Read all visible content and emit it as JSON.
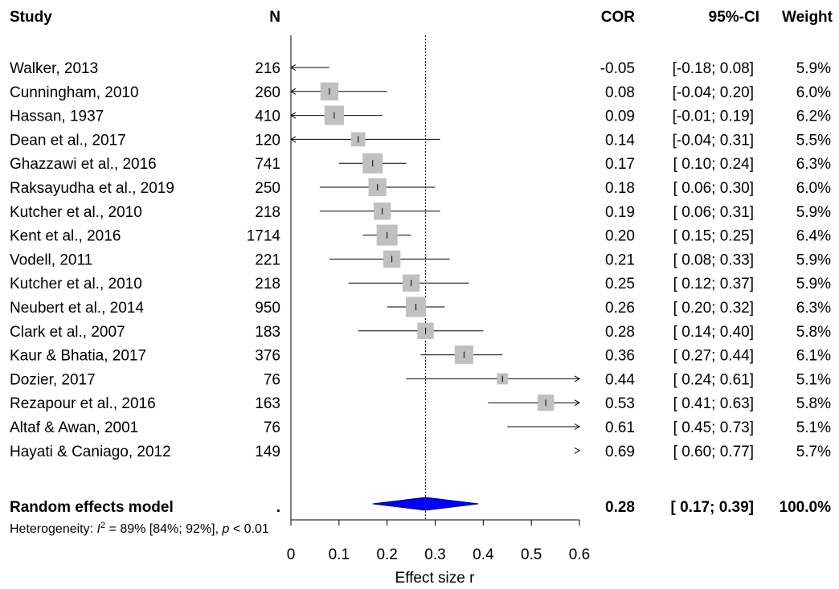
{
  "chart_data": {
    "type": "forest",
    "headers": {
      "study": "Study",
      "n": "N",
      "cor": "COR",
      "ci": "95%-CI",
      "weight": "Weight"
    },
    "studies": [
      {
        "study": "Walker, 2013",
        "n": "216",
        "cor": "-0.05",
        "ci": "[-0.18; 0.08]",
        "weight": "5.9%",
        "est": -0.05,
        "lo": -0.18,
        "hi": 0.08,
        "w": 5.9
      },
      {
        "study": "Cunningham, 2010",
        "n": "260",
        "cor": "0.08",
        "ci": "[-0.04; 0.20]",
        "weight": "6.0%",
        "est": 0.08,
        "lo": -0.04,
        "hi": 0.2,
        "w": 6.0
      },
      {
        "study": "Hassan, 1937",
        "n": "410",
        "cor": "0.09",
        "ci": "[-0.01; 0.19]",
        "weight": "6.2%",
        "est": 0.09,
        "lo": -0.01,
        "hi": 0.19,
        "w": 6.2
      },
      {
        "study": "Dean et al., 2017",
        "n": "120",
        "cor": "0.14",
        "ci": "[-0.04; 0.31]",
        "weight": "5.5%",
        "est": 0.14,
        "lo": -0.04,
        "hi": 0.31,
        "w": 5.5
      },
      {
        "study": "Ghazzawi et al., 2016",
        "n": "741",
        "cor": "0.17",
        "ci": "[ 0.10; 0.24]",
        "weight": "6.3%",
        "est": 0.17,
        "lo": 0.1,
        "hi": 0.24,
        "w": 6.3
      },
      {
        "study": "Raksayudha et al., 2019",
        "n": "250",
        "cor": "0.18",
        "ci": "[ 0.06; 0.30]",
        "weight": "6.0%",
        "est": 0.18,
        "lo": 0.06,
        "hi": 0.3,
        "w": 6.0
      },
      {
        "study": "Kutcher et al., 2010",
        "n": "218",
        "cor": "0.19",
        "ci": "[ 0.06; 0.31]",
        "weight": "5.9%",
        "est": 0.19,
        "lo": 0.06,
        "hi": 0.31,
        "w": 5.9
      },
      {
        "study": "Kent et al., 2016",
        "n": "1714",
        "cor": "0.20",
        "ci": "[ 0.15; 0.25]",
        "weight": "6.4%",
        "est": 0.2,
        "lo": 0.15,
        "hi": 0.25,
        "w": 6.4
      },
      {
        "study": "Vodell, 2011",
        "n": "221",
        "cor": "0.21",
        "ci": "[ 0.08; 0.33]",
        "weight": "5.9%",
        "est": 0.21,
        "lo": 0.08,
        "hi": 0.33,
        "w": 5.9
      },
      {
        "study": "Kutcher et al., 2010",
        "n": "218",
        "cor": "0.25",
        "ci": "[ 0.12; 0.37]",
        "weight": "5.9%",
        "est": 0.25,
        "lo": 0.12,
        "hi": 0.37,
        "w": 5.9
      },
      {
        "study": "Neubert et al., 2014",
        "n": "950",
        "cor": "0.26",
        "ci": "[ 0.20; 0.32]",
        "weight": "6.3%",
        "est": 0.26,
        "lo": 0.2,
        "hi": 0.32,
        "w": 6.3
      },
      {
        "study": "Clark et al., 2007",
        "n": "183",
        "cor": "0.28",
        "ci": "[ 0.14; 0.40]",
        "weight": "5.8%",
        "est": 0.28,
        "lo": 0.14,
        "hi": 0.4,
        "w": 5.8
      },
      {
        "study": "Kaur & Bhatia, 2017",
        "n": "376",
        "cor": "0.36",
        "ci": "[ 0.27; 0.44]",
        "weight": "6.1%",
        "est": 0.36,
        "lo": 0.27,
        "hi": 0.44,
        "w": 6.1
      },
      {
        "study": "Dozier, 2017",
        "n": "76",
        "cor": "0.44",
        "ci": "[ 0.24; 0.61]",
        "weight": "5.1%",
        "est": 0.44,
        "lo": 0.24,
        "hi": 0.61,
        "w": 5.1
      },
      {
        "study": "Rezapour et al., 2016",
        "n": "163",
        "cor": "0.53",
        "ci": "[ 0.41; 0.63]",
        "weight": "5.8%",
        "est": 0.53,
        "lo": 0.41,
        "hi": 0.63,
        "w": 5.8
      },
      {
        "study": "Altaf & Awan, 2001",
        "n": "76",
        "cor": "0.61",
        "ci": "[ 0.45; 0.73]",
        "weight": "5.1%",
        "est": 0.61,
        "lo": 0.45,
        "hi": 0.73,
        "w": 5.1
      },
      {
        "study": "Hayati & Caniago, 2012",
        "n": "149",
        "cor": "0.69",
        "ci": "[ 0.60; 0.77]",
        "weight": "5.7%",
        "est": 0.69,
        "lo": 0.6,
        "hi": 0.77,
        "w": 5.7
      }
    ],
    "pooled": {
      "label": "Random effects model",
      "n": ".",
      "cor": "0.28",
      "ci": "[ 0.17; 0.39]",
      "weight": "100.0%",
      "est": 0.28,
      "lo": 0.17,
      "hi": 0.39
    },
    "heterogeneity": {
      "prefix": "Heterogeneity: ",
      "i_symbol": "I",
      "i_sup": "2",
      "i_value": " = 89% [84%; 92%], ",
      "p_symbol": "p",
      "p_value": " < 0.01"
    },
    "x_axis": {
      "label": "Effect size r",
      "range": [
        0,
        0.6
      ],
      "ticks": [
        0,
        0.1,
        0.2,
        0.3,
        0.4,
        0.5,
        0.6
      ],
      "tick_labels": [
        "0",
        "0.1",
        "0.2",
        "0.3",
        "0.4",
        "0.5",
        "0.6"
      ]
    },
    "reference_line": 0.28,
    "colors": {
      "square": "#c0c0c0",
      "diamond": "#0000ff",
      "line": "#000000"
    }
  }
}
